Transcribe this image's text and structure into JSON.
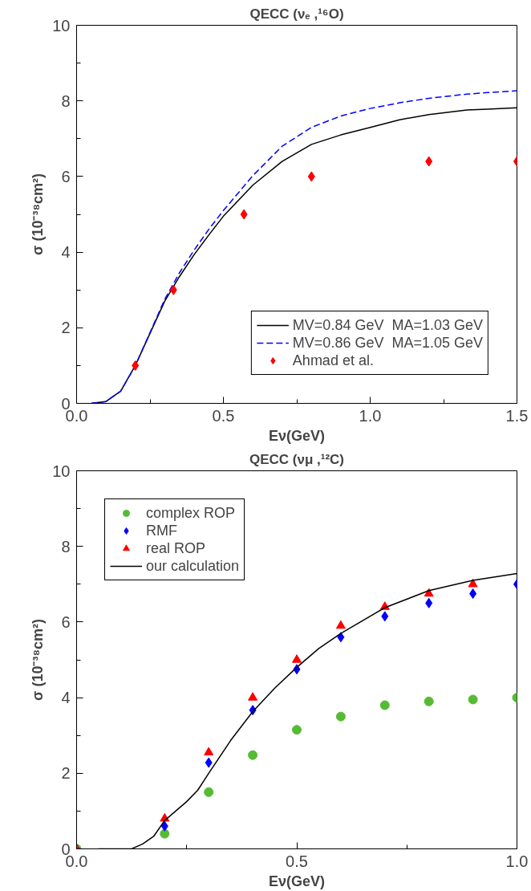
{
  "chart_data": [
    {
      "type": "line",
      "title": "QECC (νₑ ,¹⁶O)",
      "xlabel": "Eν(GeV)",
      "ylabel": "σ (10⁻³⁸cm²)",
      "xlim": [
        0,
        1.5
      ],
      "ylim": [
        0,
        10
      ],
      "xticks": [
        {
          "value": 0,
          "label": "0.0"
        },
        {
          "value": 0.5,
          "label": "0.5"
        },
        {
          "value": 1,
          "label": "1.0"
        },
        {
          "value": 1.5,
          "label": "1.5"
        }
      ],
      "yticks": [
        0,
        2,
        4,
        6,
        8,
        10
      ],
      "legend": "bottom right",
      "series": [
        {
          "name": "MV=0.84 GeV  MA=1.03 GeV",
          "line_style": "solid",
          "color": "#000000",
          "x": [
            0.05,
            0.1,
            0.15,
            0.2,
            0.25,
            0.3,
            0.35,
            0.4,
            0.45,
            0.5,
            0.6,
            0.7,
            0.8,
            0.9,
            1.0,
            1.1,
            1.2,
            1.33,
            1.4,
            1.5
          ],
          "values": [
            0,
            0.05,
            0.32,
            1.0,
            1.85,
            2.7,
            3.35,
            3.93,
            4.45,
            4.95,
            5.77,
            6.4,
            6.85,
            7.1,
            7.3,
            7.5,
            7.64,
            7.76,
            7.78,
            7.82
          ]
        },
        {
          "name": "MV=0.86 GeV  MA=1.05 GeV",
          "line_style": "dashed",
          "color": "#0000ff",
          "x": [
            0.05,
            0.1,
            0.15,
            0.2,
            0.25,
            0.3,
            0.35,
            0.4,
            0.45,
            0.5,
            0.6,
            0.7,
            0.8,
            0.9,
            1.0,
            1.1,
            1.2,
            1.33,
            1.4,
            1.5
          ],
          "values": [
            0,
            0.05,
            0.32,
            1.0,
            1.87,
            2.75,
            3.45,
            4.05,
            4.6,
            5.1,
            6.02,
            6.8,
            7.3,
            7.6,
            7.8,
            7.95,
            8.07,
            8.18,
            8.22,
            8.27
          ]
        },
        {
          "name": "Ahmad et al.",
          "type": "scatter",
          "marker": "diamond",
          "color": "#ff0000",
          "x": [
            0.2,
            0.33,
            0.57,
            0.8,
            1.2,
            1.5
          ],
          "values": [
            1,
            3,
            5,
            6,
            6.4,
            6.4
          ]
        }
      ]
    },
    {
      "type": "line",
      "title": "QECC (νμ ,¹²C)",
      "xlabel": "Eν(GeV)",
      "ylabel": "σ (10⁻³⁸cm²)",
      "xlim": [
        0,
        1
      ],
      "ylim": [
        0,
        10
      ],
      "xticks": [
        {
          "value": 0,
          "label": "0.0"
        },
        {
          "value": 0.5,
          "label": "0.5"
        },
        {
          "value": 1,
          "label": "1.0"
        }
      ],
      "yticks": [
        0,
        2,
        4,
        6,
        8,
        10
      ],
      "legend": "top left",
      "series": [
        {
          "name": "complex ROP",
          "type": "scatter",
          "marker": "circle",
          "color": "#55bb33",
          "x": [
            0,
            0.2,
            0.3,
            0.4,
            0.5,
            0.6,
            0.7,
            0.8,
            0.9,
            1.0
          ],
          "values": [
            0,
            0.4,
            1.5,
            2.48,
            3.15,
            3.5,
            3.8,
            3.9,
            3.95,
            4.0
          ]
        },
        {
          "name": "RMF",
          "type": "scatter",
          "marker": "diamond",
          "color": "#0000ff",
          "x": [
            0,
            0.2,
            0.3,
            0.4,
            0.5,
            0.6,
            0.7,
            0.8,
            0.9,
            1.0
          ],
          "values": [
            0,
            0.6,
            2.28,
            3.67,
            4.75,
            5.6,
            6.15,
            6.5,
            6.75,
            7.0
          ]
        },
        {
          "name": "real ROP",
          "type": "scatter",
          "marker": "triangle",
          "color": "#ff0000",
          "x": [
            0,
            0.2,
            0.3,
            0.4,
            0.5,
            0.6,
            0.7,
            0.8,
            0.9
          ],
          "values": [
            0,
            0.8,
            2.55,
            4.0,
            5.0,
            5.9,
            6.4,
            6.75,
            7.0
          ]
        },
        {
          "name": "our calculation",
          "line_style": "solid",
          "color": "#000000",
          "x": [
            0.05,
            0.125,
            0.15,
            0.175,
            0.2,
            0.225,
            0.25,
            0.275,
            0.3,
            0.35,
            0.4,
            0.45,
            0.5,
            0.55,
            0.6,
            0.7,
            0.8,
            0.9,
            1.0
          ],
          "values": [
            0,
            0,
            0.13,
            0.33,
            0.75,
            1.0,
            1.25,
            1.55,
            2.0,
            2.87,
            3.63,
            4.25,
            4.8,
            5.3,
            5.7,
            6.38,
            6.83,
            7.1,
            7.28
          ]
        }
      ]
    }
  ]
}
